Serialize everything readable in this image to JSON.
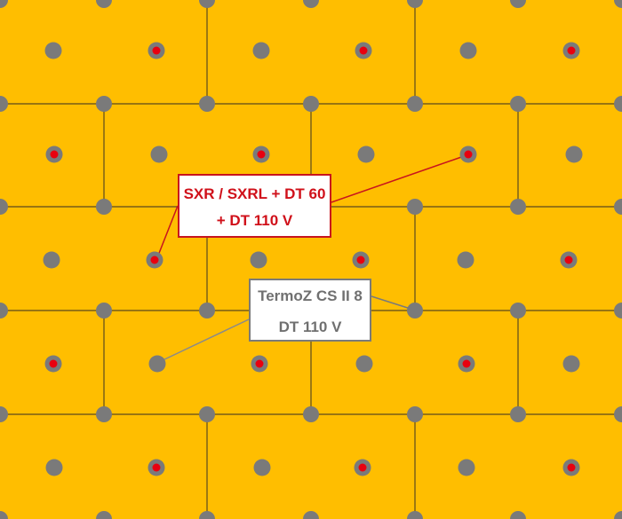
{
  "colors": {
    "background": "#FFBE00",
    "grid_line": "#5A4A1E",
    "anchor_dot": "#7A7A7A",
    "highlight_dot": "#E8000F",
    "red_label": "#D0101A",
    "grey_label": "#707070"
  },
  "labels": {
    "red": {
      "line1": "SXR / SXRL + DT 60",
      "line2": "+ DT 110 V"
    },
    "grey": {
      "line1": "TermoZ CS II 8",
      "line2": "DT 110 V"
    }
  }
}
